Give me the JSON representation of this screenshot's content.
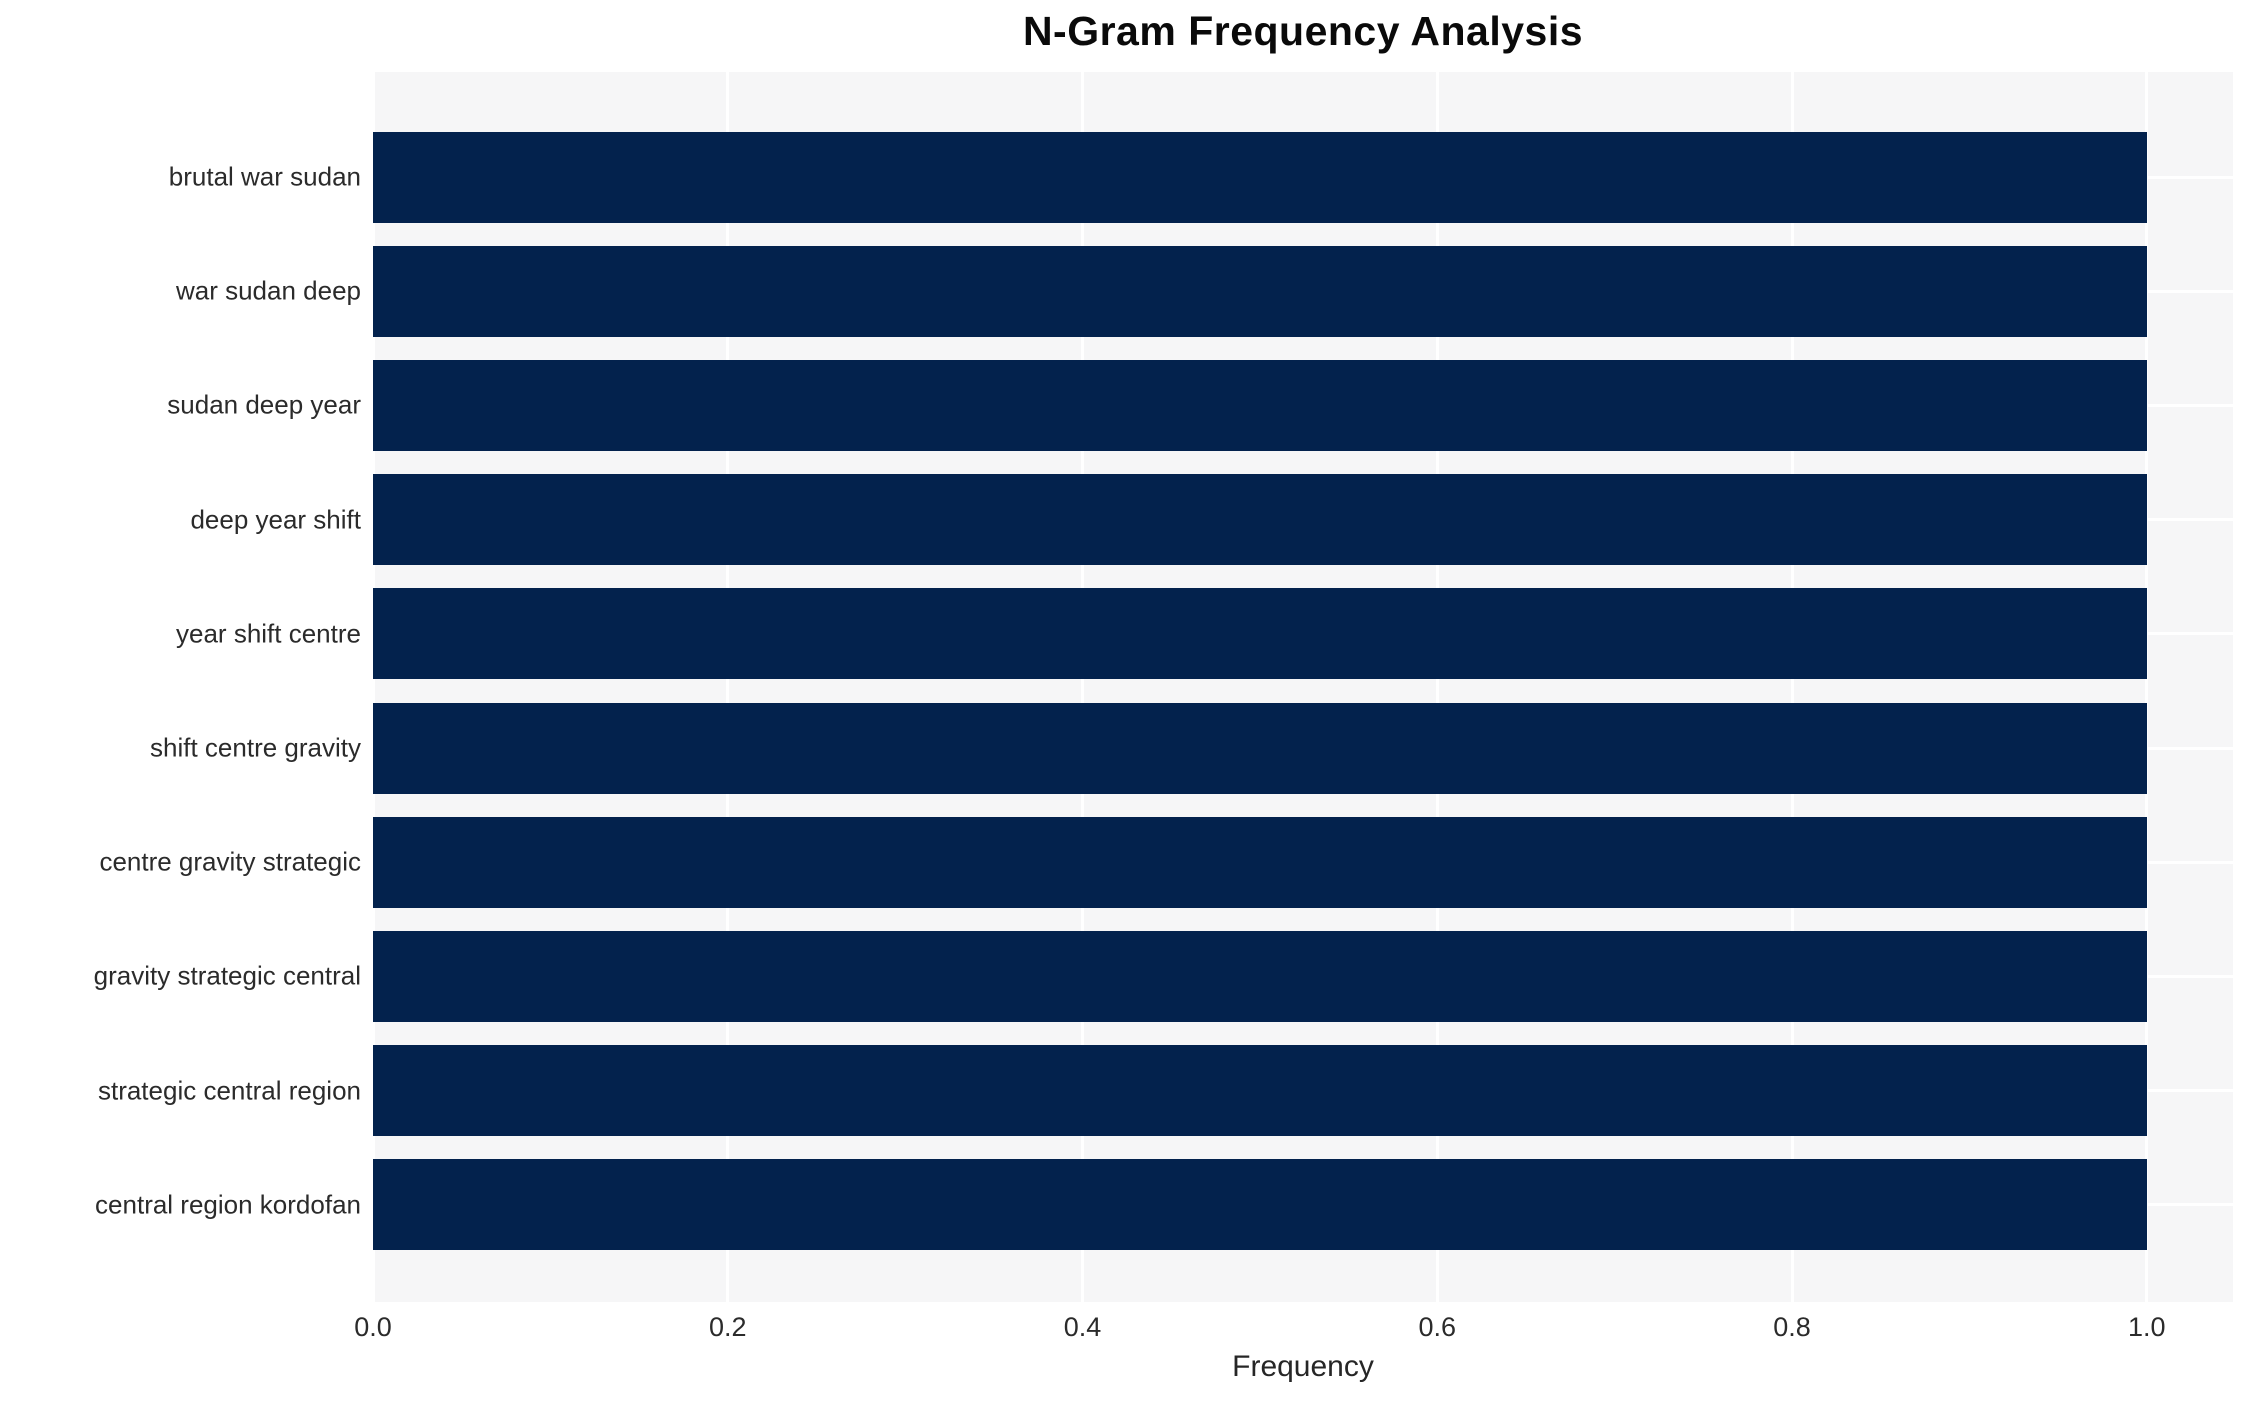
{
  "chart_data": {
    "type": "bar",
    "orientation": "horizontal",
    "title": "N-Gram Frequency Analysis",
    "xlabel": "Frequency",
    "ylabel": "",
    "categories": [
      "brutal war sudan",
      "war sudan deep",
      "sudan deep year",
      "deep year shift",
      "year shift centre",
      "shift centre gravity",
      "centre gravity strategic",
      "gravity strategic central",
      "strategic central region",
      "central region kordofan"
    ],
    "values": [
      1.0,
      1.0,
      1.0,
      1.0,
      1.0,
      1.0,
      1.0,
      1.0,
      1.0,
      1.0
    ],
    "x_ticks": [
      0.0,
      0.2,
      0.4,
      0.6,
      0.8,
      1.0
    ],
    "x_tick_labels": [
      "0.0",
      "0.2",
      "0.4",
      "0.6",
      "0.8",
      "1.0"
    ],
    "xlim": [
      0,
      1.0486
    ],
    "grid": true,
    "legend": false,
    "colors": {
      "bar": "#03224d",
      "plot_background": "#f6f6f7",
      "gridline": "#ffffff",
      "figure_background": "#ffffff",
      "tick_text": "#2b2b2b",
      "title_text": "#0a0a0a"
    }
  }
}
